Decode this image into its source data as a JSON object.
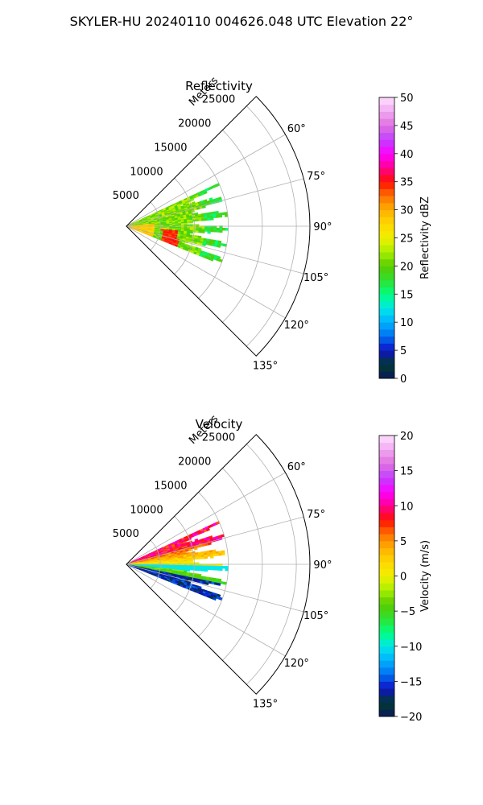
{
  "figure": {
    "suptitle": "SKYLER-HU  20240110  004626.048 UTC Elevation 22°"
  },
  "chart_data": [
    {
      "type": "heatmap",
      "projection": "polar-sector",
      "title": "Reflectivity",
      "range_label": "Meters",
      "r_max": 27000,
      "r_ticks": [
        5000,
        10000,
        15000,
        20000,
        25000
      ],
      "r_tick_labels": [
        "5000",
        "10000",
        "15000",
        "20000",
        "25000"
      ],
      "theta_range_deg": [
        45,
        135
      ],
      "theta_ticks": [
        60,
        75,
        90,
        105,
        120,
        135
      ],
      "theta_tick_labels": [
        "60°",
        "75°",
        "90°",
        "105°",
        "120°",
        "135°"
      ],
      "data_extent": {
        "theta_deg": [
          65,
          112
        ],
        "r_max": 15000
      },
      "grid": true,
      "colorbar": {
        "label": "Reflectivity dBZ",
        "min": 0,
        "max": 50,
        "ticks": [
          0,
          5,
          10,
          15,
          20,
          25,
          30,
          35,
          40,
          45,
          50
        ],
        "tick_labels": [
          "0",
          "5",
          "10",
          "15",
          "20",
          "25",
          "30",
          "35",
          "40",
          "45",
          "50"
        ],
        "stops": [
          {
            "v": 0,
            "c": "#0a1a5a"
          },
          {
            "v": 2.5,
            "c": "#003a30"
          },
          {
            "v": 5,
            "c": "#1010c8"
          },
          {
            "v": 7.5,
            "c": "#0070f0"
          },
          {
            "v": 10,
            "c": "#00b0ff"
          },
          {
            "v": 12.5,
            "c": "#00e8e8"
          },
          {
            "v": 15,
            "c": "#00ff80"
          },
          {
            "v": 17.5,
            "c": "#30e030"
          },
          {
            "v": 20,
            "c": "#58cc00"
          },
          {
            "v": 22.5,
            "c": "#a8f000"
          },
          {
            "v": 25,
            "c": "#f0f000"
          },
          {
            "v": 27.5,
            "c": "#ffd800"
          },
          {
            "v": 30,
            "c": "#ffb000"
          },
          {
            "v": 32.5,
            "c": "#ff7000"
          },
          {
            "v": 35,
            "c": "#ff1000"
          },
          {
            "v": 37.5,
            "c": "#ff0090"
          },
          {
            "v": 40,
            "c": "#ff00ff"
          },
          {
            "v": 42.5,
            "c": "#c040ff"
          },
          {
            "v": 45,
            "c": "#e070e0"
          },
          {
            "v": 47.5,
            "c": "#f0a8f0"
          },
          {
            "v": 50,
            "c": "#ffe0ff"
          }
        ]
      }
    },
    {
      "type": "heatmap",
      "projection": "polar-sector",
      "title": "Velocity",
      "range_label": "Meters",
      "r_max": 27000,
      "r_ticks": [
        5000,
        10000,
        15000,
        20000,
        25000
      ],
      "r_tick_labels": [
        "5000",
        "10000",
        "15000",
        "20000",
        "25000"
      ],
      "theta_range_deg": [
        45,
        135
      ],
      "theta_ticks": [
        60,
        75,
        90,
        105,
        120,
        135
      ],
      "theta_tick_labels": [
        "60°",
        "75°",
        "90°",
        "105°",
        "120°",
        "135°"
      ],
      "data_extent": {
        "theta_deg": [
          65,
          112
        ],
        "r_max": 15000
      },
      "grid": true,
      "colorbar": {
        "label": "Velocity (m/s)",
        "min": -20,
        "max": 20,
        "ticks": [
          -20,
          -15,
          -10,
          -5,
          0,
          5,
          10,
          15,
          20
        ],
        "tick_labels": [
          "−20",
          "−15",
          "−10",
          "−5",
          "0",
          "5",
          "10",
          "15",
          "20"
        ],
        "stops": [
          {
            "v": -20,
            "c": "#0a1a5a"
          },
          {
            "v": -18,
            "c": "#003a30"
          },
          {
            "v": -16,
            "c": "#1010c8"
          },
          {
            "v": -14,
            "c": "#0070f0"
          },
          {
            "v": -12,
            "c": "#00b0ff"
          },
          {
            "v": -10,
            "c": "#00e8e8"
          },
          {
            "v": -8,
            "c": "#00ff80"
          },
          {
            "v": -6,
            "c": "#30e030"
          },
          {
            "v": -4,
            "c": "#58cc00"
          },
          {
            "v": -2,
            "c": "#a8f000"
          },
          {
            "v": 0,
            "c": "#f0f000"
          },
          {
            "v": 2,
            "c": "#ffd800"
          },
          {
            "v": 4,
            "c": "#ffb000"
          },
          {
            "v": 6,
            "c": "#ff7000"
          },
          {
            "v": 8,
            "c": "#ff1000"
          },
          {
            "v": 10,
            "c": "#ff0090"
          },
          {
            "v": 12,
            "c": "#ff00ff"
          },
          {
            "v": 14,
            "c": "#c040ff"
          },
          {
            "v": 16,
            "c": "#e070e0"
          },
          {
            "v": 18,
            "c": "#f0a8f0"
          },
          {
            "v": 20,
            "c": "#ffe0ff"
          }
        ]
      }
    }
  ]
}
